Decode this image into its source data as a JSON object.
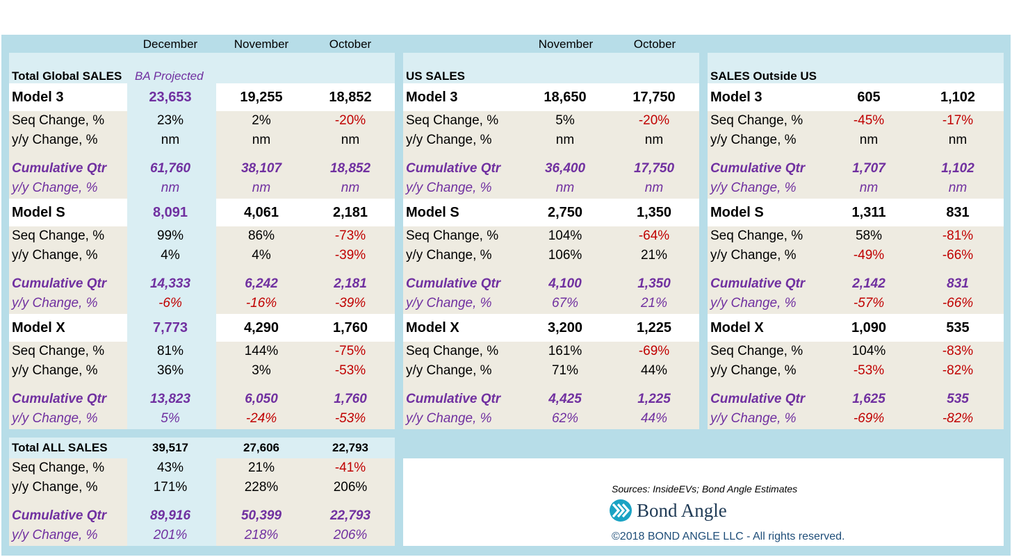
{
  "headers": {
    "global": [
      "December",
      "November",
      "October"
    ],
    "us": [
      "November",
      "October"
    ]
  },
  "global": {
    "title": "Total Global SALES",
    "tag": "BA Projected",
    "models": [
      {
        "name": "Model 3",
        "values": [
          "23,653",
          "19,255",
          "18,852"
        ],
        "seq": [
          "23%",
          "2%",
          "-20%"
        ],
        "yy": [
          "nm",
          "nm",
          "nm"
        ],
        "cum": [
          "61,760",
          "38,107",
          "18,852"
        ],
        "cyy": [
          "nm",
          "nm",
          "nm"
        ]
      },
      {
        "name": "Model S",
        "values": [
          "8,091",
          "4,061",
          "2,181"
        ],
        "seq": [
          "99%",
          "86%",
          "-73%"
        ],
        "yy": [
          "4%",
          "4%",
          "-39%"
        ],
        "cum": [
          "14,333",
          "6,242",
          "2,181"
        ],
        "cyy": [
          "-6%",
          "-16%",
          "-39%"
        ]
      },
      {
        "name": "Model X",
        "values": [
          "7,773",
          "4,290",
          "1,760"
        ],
        "seq": [
          "81%",
          "144%",
          "-75%"
        ],
        "yy": [
          "36%",
          "3%",
          "-53%"
        ],
        "cum": [
          "13,823",
          "6,050",
          "1,760"
        ],
        "cyy": [
          "5%",
          "-24%",
          "-53%"
        ]
      }
    ]
  },
  "us": {
    "title": "US SALES",
    "models": [
      {
        "name": "Model 3",
        "values": [
          "18,650",
          "17,750"
        ],
        "seq": [
          "5%",
          "-20%"
        ],
        "yy": [
          "nm",
          "nm"
        ],
        "cum": [
          "36,400",
          "17,750"
        ],
        "cyy": [
          "nm",
          "nm"
        ]
      },
      {
        "name": "Model S",
        "values": [
          "2,750",
          "1,350"
        ],
        "seq": [
          "104%",
          "-64%"
        ],
        "yy": [
          "106%",
          "21%"
        ],
        "cum": [
          "4,100",
          "1,350"
        ],
        "cyy": [
          "67%",
          "21%"
        ]
      },
      {
        "name": "Model X",
        "values": [
          "3,200",
          "1,225"
        ],
        "seq": [
          "161%",
          "-69%"
        ],
        "yy": [
          "71%",
          "44%"
        ],
        "cum": [
          "4,425",
          "1,225"
        ],
        "cyy": [
          "62%",
          "44%"
        ]
      }
    ]
  },
  "outside": {
    "title": "SALES Outside US",
    "models": [
      {
        "name": "Model 3",
        "values": [
          "605",
          "1,102"
        ],
        "seq": [
          "-45%",
          "-17%"
        ],
        "yy": [
          "nm",
          "nm"
        ],
        "cum": [
          "1,707",
          "1,102"
        ],
        "cyy": [
          "nm",
          "nm"
        ]
      },
      {
        "name": "Model S",
        "values": [
          "1,311",
          "831"
        ],
        "seq": [
          "58%",
          "-81%"
        ],
        "yy": [
          "-49%",
          "-66%"
        ],
        "cum": [
          "2,142",
          "831"
        ],
        "cyy": [
          "-57%",
          "-66%"
        ]
      },
      {
        "name": "Model X",
        "values": [
          "1,090",
          "535"
        ],
        "seq": [
          "104%",
          "-83%"
        ],
        "yy": [
          "-53%",
          "-82%"
        ],
        "cum": [
          "1,625",
          "535"
        ],
        "cyy": [
          "-69%",
          "-82%"
        ]
      }
    ]
  },
  "labels": {
    "seq": "Seq Change, %",
    "yy": "y/y Change, %",
    "cum": "Cumulative Qtr",
    "cyy": "y/y Change, %"
  },
  "total": {
    "title": "Total ALL SALES",
    "values": [
      "39,517",
      "27,606",
      "22,793"
    ],
    "seq": [
      "43%",
      "21%",
      "-41%"
    ],
    "yy": [
      "171%",
      "228%",
      "206%"
    ],
    "cum": [
      "89,916",
      "50,399",
      "22,793"
    ],
    "cyy": [
      "201%",
      "218%",
      "206%"
    ]
  },
  "credit": {
    "sources": "Sources: InsideEVs; Bond Angle Estimates",
    "logo_text": "Bond Angle",
    "logo_icon": "bond-angle-chevron-icon",
    "copyright": "©2018 BOND ANGLE LLC - All rights reserved."
  },
  "colors": {
    "frame": "#b7dde8",
    "header_fill": "#daeef3",
    "body_fill": "#eeebe1",
    "accent_purple": "#7030a0",
    "negative_red": "#c00000"
  }
}
